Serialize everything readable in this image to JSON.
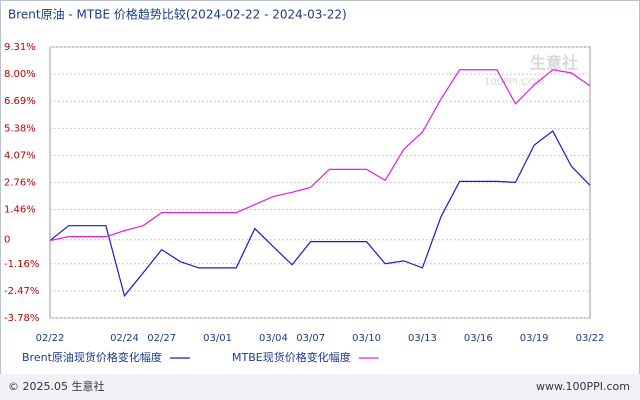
{
  "chart_data": {
    "type": "line",
    "title": "Brent原油 - MTBE 价格趋势比较(2024-02-22 - 2024-03-22)",
    "categories": [
      "02/22",
      null,
      null,
      null,
      "02/24",
      null,
      "02/27",
      null,
      null,
      "03/01",
      null,
      null,
      "03/04",
      null,
      "03/07",
      null,
      null,
      "03/10",
      null,
      null,
      "03/13",
      null,
      null,
      "03/16",
      null,
      null,
      "03/19",
      null,
      null,
      "03/22"
    ],
    "series": [
      {
        "name": "Brent原油现货价格变化幅度",
        "color": "#1a1ad0",
        "values": [
          -0.04,
          0.68,
          0.68,
          0.68,
          -2.71,
          -1.6,
          -0.48,
          -1.06,
          -1.36,
          -1.36,
          -1.36,
          0.54,
          -0.34,
          -1.21,
          -0.09,
          -0.09,
          -0.09,
          -0.09,
          -1.16,
          -1.02,
          -1.36,
          1.12,
          2.82,
          2.82,
          2.82,
          2.77,
          4.57,
          5.25,
          3.55,
          2.63
        ]
      },
      {
        "name": "MTBE现货价格变化幅度",
        "color": "#e020e0",
        "values": [
          -0.04,
          0.15,
          0.15,
          0.15,
          0.44,
          0.68,
          1.31,
          1.31,
          1.31,
          1.31,
          1.31,
          1.7,
          2.09,
          2.29,
          2.53,
          3.4,
          3.4,
          3.4,
          2.87,
          4.37,
          5.2,
          6.8,
          8.21,
          8.21,
          8.21,
          6.56,
          7.48,
          8.21,
          8.06,
          7.43
        ]
      }
    ],
    "ylim": [
      -3.78,
      9.31
    ],
    "yticks": [
      {
        "value": -3.78,
        "label": "-3.78%"
      },
      {
        "value": -2.47,
        "label": "-2.47%"
      },
      {
        "value": -1.16,
        "label": "-1.16%"
      },
      0,
      {
        "value": 1.46,
        "label": "1.46%"
      },
      {
        "value": 2.76,
        "label": "2.76%"
      },
      {
        "value": 4.07,
        "label": "4.07%"
      },
      {
        "value": 5.38,
        "label": "5.38%"
      },
      {
        "value": 6.69,
        "label": "6.69%"
      },
      {
        "value": 8.0,
        "label": "8.00%"
      },
      {
        "value": 9.31,
        "label": "9.31%"
      }
    ],
    "grid": true,
    "watermark": [
      "生意社",
      "100PPI.COM"
    ],
    "footer": {
      "left": "© 2025.05 生意社",
      "right": "www.100PPI.com"
    }
  }
}
